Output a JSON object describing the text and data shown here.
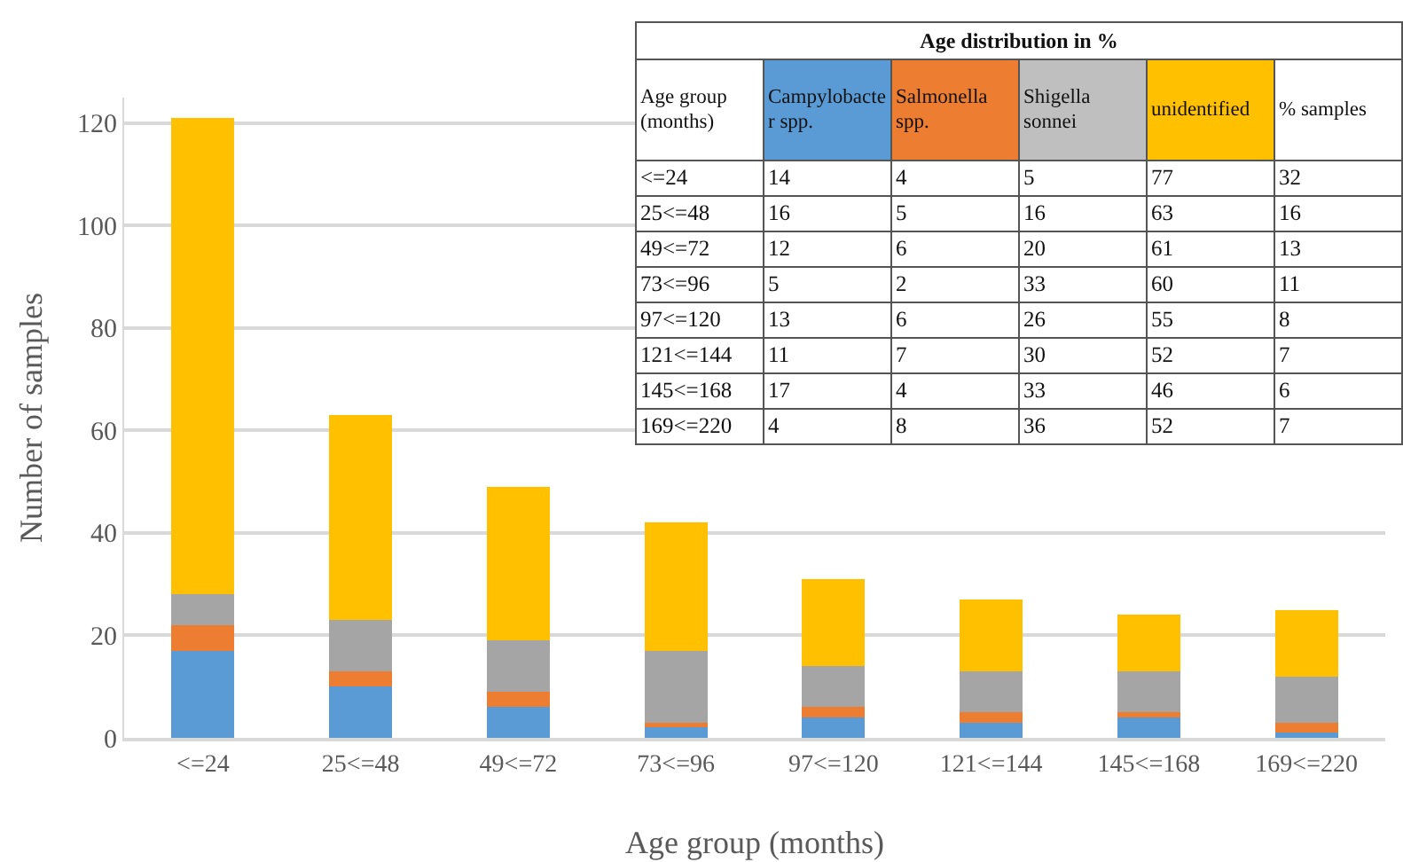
{
  "chart_data": [
    {
      "type": "bar",
      "xlabel": "Age group (months)",
      "ylabel": "Number of samples",
      "categories": [
        "<=24",
        "25<=48",
        "49<=72",
        "73<=96",
        "97<=120",
        "121<=144",
        "145<=168",
        "169<=220"
      ],
      "stacked": true,
      "series": [
        {
          "color": "#5b9bd5",
          "values": [
            17,
            10,
            6,
            2,
            4,
            3,
            4,
            1
          ]
        },
        {
          "color": "#ed7d31",
          "values": [
            5,
            3,
            3,
            1,
            2,
            2,
            1,
            2
          ]
        },
        {
          "color": "#a5a5a5",
          "values": [
            6,
            10,
            10,
            14,
            8,
            8,
            8,
            9
          ]
        },
        {
          "color": "#ffc000",
          "values": [
            93,
            40,
            30,
            25,
            17,
            14,
            11,
            13
          ]
        }
      ],
      "ylim": [
        0,
        125
      ],
      "yticks": [
        0,
        20,
        40,
        60,
        80,
        100,
        120
      ],
      "grid": "y"
    },
    {
      "type": "heatmap",
      "title": "Age distribution in %",
      "data_labels": true,
      "ylabel": "Age group (months)",
      "categories": [
        "Campylobacter spp.",
        "Salmonella spp.",
        "Shigella sonnei",
        "unidentified",
        "% samples"
      ],
      "colors": [
        "#5b9bd5",
        "#ed7d31",
        "#bfbfbf",
        "#ffc000",
        null
      ],
      "y_categories": [
        "<=24",
        "25<=48",
        "49<=72",
        "73<=96",
        "97<=120",
        "121<=144",
        "145<=168",
        "169<=220"
      ],
      "cells": [
        [
          14,
          4,
          5,
          77,
          32
        ],
        [
          16,
          5,
          16,
          63,
          16
        ],
        [
          12,
          6,
          20,
          61,
          13
        ],
        [
          5,
          2,
          33,
          60,
          11
        ],
        [
          13,
          6,
          26,
          55,
          8
        ],
        [
          11,
          7,
          30,
          52,
          7
        ],
        [
          17,
          4,
          33,
          46,
          6
        ],
        [
          4,
          8,
          36,
          52,
          7
        ]
      ]
    }
  ]
}
